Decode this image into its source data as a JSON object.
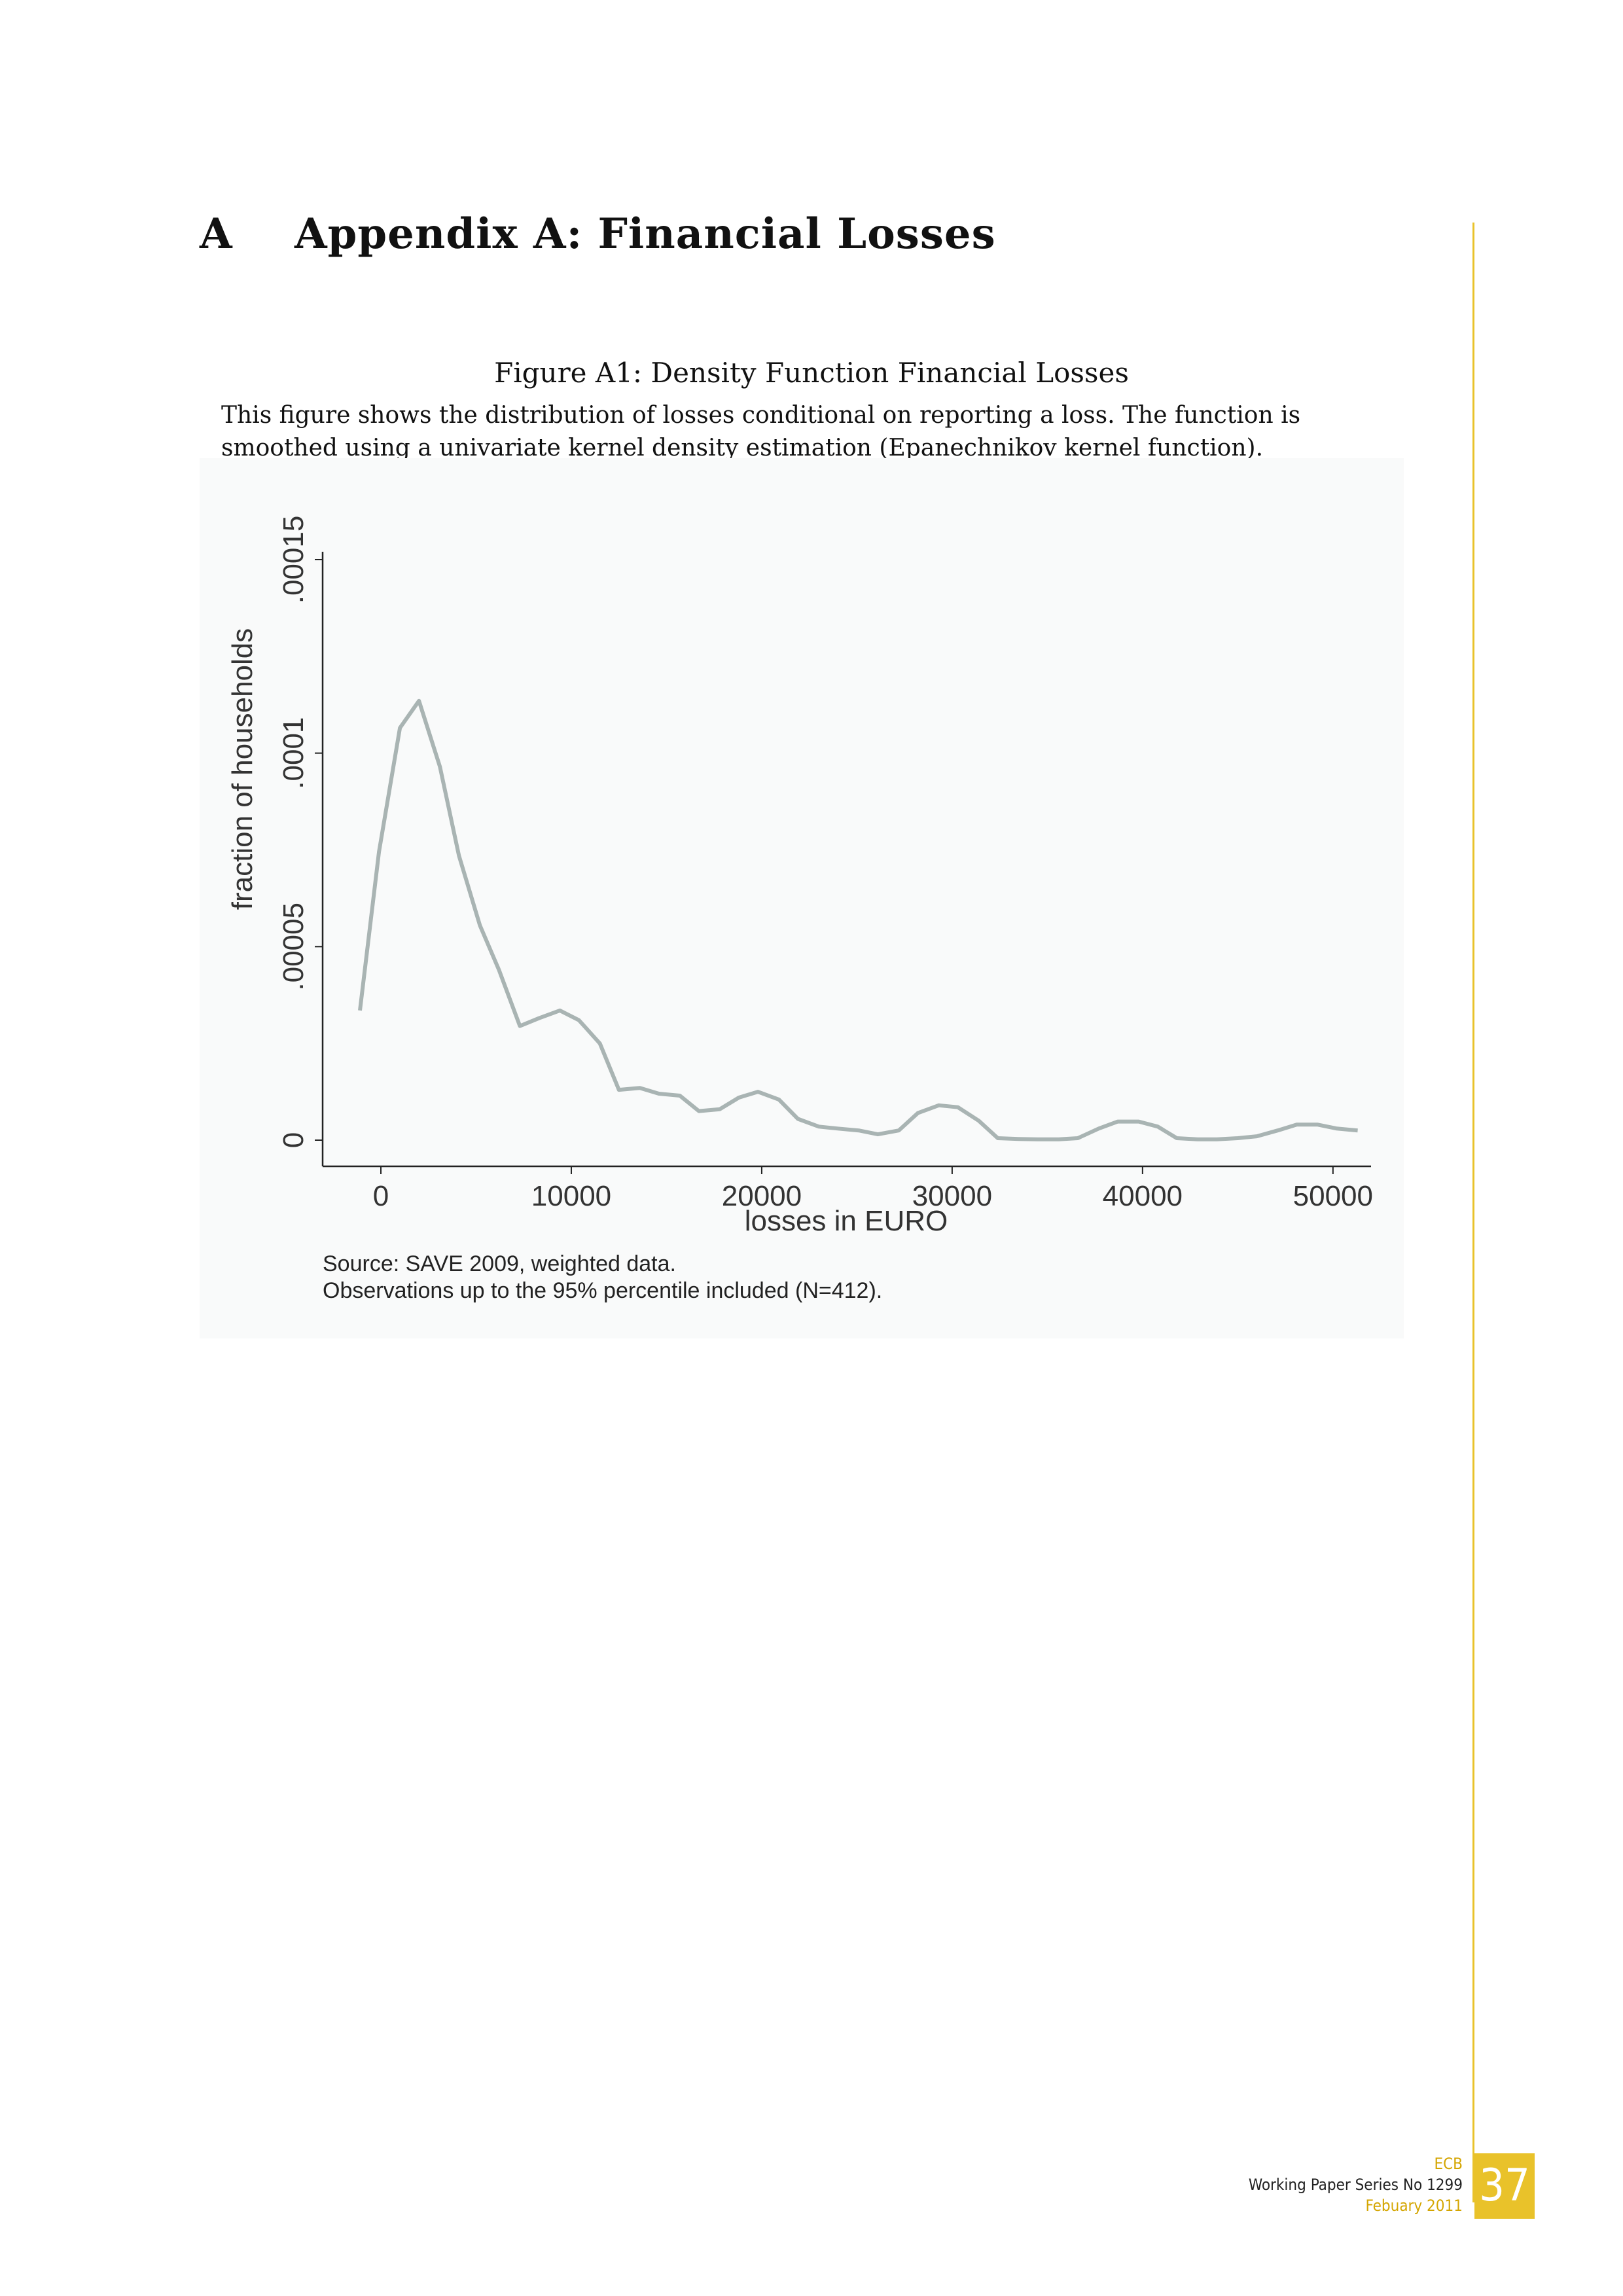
{
  "section": {
    "number": "A",
    "title": "Appendix A: Financial Losses"
  },
  "figure": {
    "caption": "Figure A1: Density Function Financial Losses",
    "note": "This figure shows the distribution of losses conditional on reporting a loss. The function is smoothed using a univariate kernel density estimation (Epanechnikov kernel function).",
    "source_line1": "Source: SAVE 2009, weighted data.",
    "source_line2": "Observations up to the 95% percentile included (N=412)."
  },
  "chart_data": {
    "type": "line",
    "xlabel": "losses in EURO",
    "ylabel": "fraction of households",
    "xlim": [
      -2200,
      52000
    ],
    "ylim": [
      0,
      0.00015
    ],
    "x_ticks": [
      0,
      10000,
      20000,
      30000,
      40000,
      50000
    ],
    "x_tick_labels": [
      "0",
      "10000",
      "20000",
      "30000",
      "40000",
      "50000"
    ],
    "y_ticks": [
      0,
      5e-05,
      0.0001,
      0.00015
    ],
    "y_tick_labels": [
      "0",
      ".00005",
      ".0001",
      ".00015"
    ],
    "line_color": "#a9b4b3",
    "series": [
      {
        "x": [
          -1100,
          -100,
          1000,
          2000,
          3100,
          4100,
          5200,
          6200,
          7300,
          8300,
          9400,
          10400,
          11500,
          12500,
          13600,
          14600,
          15700,
          16700,
          17800,
          18800,
          19800,
          20900,
          21900,
          23000,
          24000,
          25100,
          26100,
          27200,
          28200,
          29300,
          30300,
          31400,
          32400,
          33500,
          34500,
          35600,
          36600,
          37700,
          38700,
          39800,
          40800,
          41800,
          42900,
          43900,
          45000,
          46000,
          47100,
          48100,
          49200,
          50200,
          51300
        ],
        "y": [
          3.35e-05,
          7.45e-05,
          0.0001065,
          0.0001135,
          9.65e-05,
          7.35e-05,
          5.55e-05,
          4.4e-05,
          2.95e-05,
          3.15e-05,
          3.35e-05,
          3.1e-05,
          2.5e-05,
          1.3e-05,
          1.35e-05,
          1.2e-05,
          1.15e-05,
          7.5e-06,
          8e-06,
          1.1e-05,
          1.25e-05,
          1.05e-05,
          5.5e-06,
          3.5e-06,
          3e-06,
          2.5e-06,
          1.5e-06,
          2.5e-06,
          7e-06,
          9e-06,
          8.5e-06,
          5e-06,
          5e-07,
          3e-07,
          2e-07,
          2e-07,
          5e-07,
          3e-06,
          4.8e-06,
          4.8e-06,
          3.5e-06,
          5e-07,
          2e-07,
          2e-07,
          5e-07,
          1e-06,
          2.5e-06,
          4e-06,
          4e-06,
          3e-06,
          2.5e-06
        ]
      }
    ],
    "grid": false,
    "legend": "none"
  },
  "footer": {
    "org": "ECB",
    "series": "Working Paper Series No 1299",
    "date": "Febuary 2011",
    "page": "37"
  }
}
